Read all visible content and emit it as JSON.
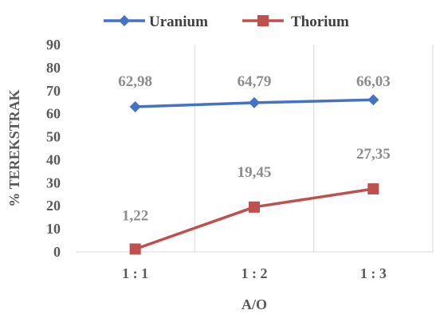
{
  "chart_data": {
    "type": "line",
    "categories": [
      "1 : 1",
      "1 : 2",
      "1 : 3"
    ],
    "series": [
      {
        "name": "Uranium",
        "values": [
          62.98,
          64.79,
          66.03
        ],
        "labels": [
          "62,98",
          "64,79",
          "66,03"
        ],
        "color": "#4472c4",
        "marker": "diamond"
      },
      {
        "name": "Thorium",
        "values": [
          1.22,
          19.45,
          27.35
        ],
        "labels": [
          "1,22",
          "19,45",
          "27,35"
        ],
        "color": "#c0504d",
        "marker": "square"
      }
    ],
    "title": "",
    "xlabel": "A/O",
    "ylabel": "% TEREKSTRAK",
    "ylim": [
      0,
      90
    ],
    "yticks": [
      "0",
      "10",
      "20",
      "30",
      "40",
      "50",
      "60",
      "70",
      "80",
      "90"
    ],
    "grid": "vertical category separators",
    "legend": "top"
  }
}
